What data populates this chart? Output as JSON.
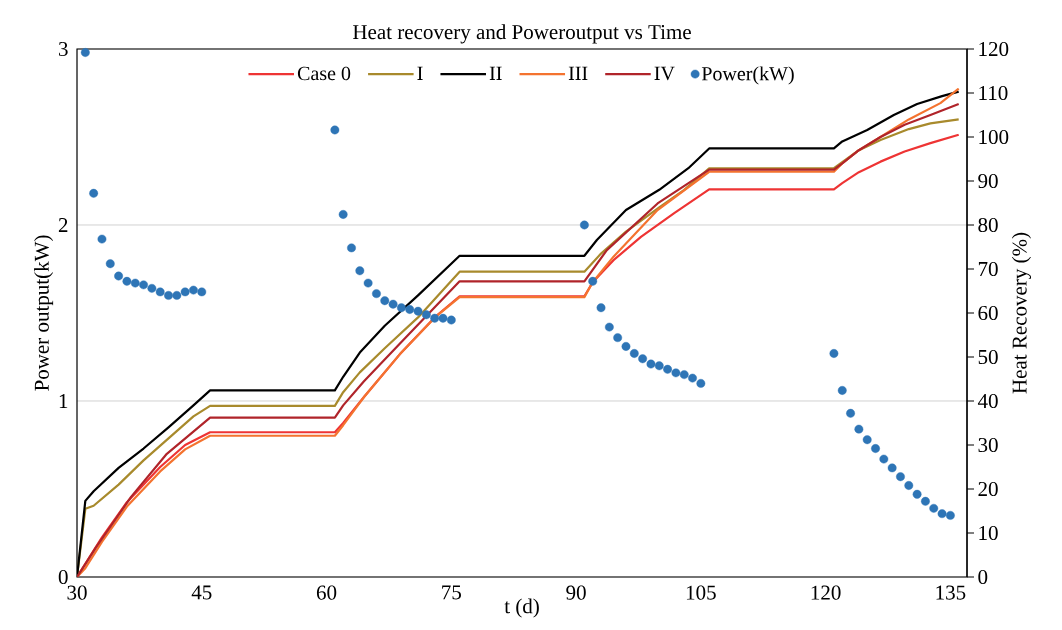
{
  "chart_data": {
    "type": "line",
    "title": "Heat recovery and Poweroutput vs Time",
    "xlabel": "t (d)",
    "ylabel": "Power output(kW)",
    "y2label": "Heat Recovery (%)",
    "xlim": [
      30,
      137
    ],
    "xticks": [
      30,
      45,
      60,
      75,
      90,
      105,
      120,
      135
    ],
    "ylim": [
      0,
      3
    ],
    "yticks": [
      0,
      1,
      2,
      3
    ],
    "y2lim": [
      0,
      120
    ],
    "y2ticks": [
      0,
      10,
      20,
      30,
      40,
      50,
      60,
      70,
      80,
      90,
      100,
      110,
      120
    ],
    "grid": "y",
    "legend": "top",
    "series": [
      {
        "name": "Case 0",
        "axis": "y2",
        "color": "#ee3434",
        "x": [
          30,
          31,
          33,
          36,
          40,
          43,
          46,
          61,
          62,
          64.5,
          68.8,
          73,
          76,
          91,
          92,
          94.5,
          97.8,
          101.8,
          106,
          121,
          122,
          124,
          126.6,
          129.5,
          132.6,
          136
        ],
        "values": [
          0,
          3,
          9,
          17,
          25,
          30,
          32.9,
          32.9,
          35,
          40.9,
          50.6,
          59,
          63.8,
          63.8,
          67,
          72,
          77.3,
          82.7,
          88.1,
          88.1,
          89.5,
          92,
          94.4,
          96.7,
          98.6,
          100.5
        ]
      },
      {
        "name": "I",
        "axis": "y2",
        "color": "#a88a2c",
        "x": [
          30,
          31,
          32,
          35,
          38,
          41,
          44,
          46,
          61,
          62,
          64,
          67,
          71,
          76,
          91,
          93,
          96,
          100,
          103,
          106,
          121,
          124,
          126.6,
          130,
          132.6,
          136
        ],
        "values": [
          0,
          15.5,
          16.2,
          21,
          26.5,
          31.5,
          36.5,
          38.9,
          38.9,
          42,
          46.5,
          52,
          59,
          69.4,
          69.4,
          73.5,
          78.5,
          84,
          88,
          92.9,
          92.9,
          97,
          99.3,
          101.8,
          103.1,
          104
        ]
      },
      {
        "name": "II",
        "axis": "y2",
        "color": "#000000",
        "x": [
          30,
          31,
          32,
          35,
          38,
          41,
          44,
          46,
          61,
          62,
          64,
          67,
          71,
          76,
          91,
          92.5,
          96,
          100,
          103.5,
          106,
          121,
          122,
          125,
          128.2,
          131,
          134,
          136
        ],
        "values": [
          0,
          17.3,
          19.5,
          24.8,
          29.2,
          34,
          39,
          42.4,
          42.4,
          45.5,
          51,
          57.1,
          64,
          73,
          73,
          76.6,
          83.4,
          88,
          92.9,
          97.4,
          97.4,
          99,
          101.6,
          105,
          107.5,
          109.3,
          110.3
        ]
      },
      {
        "name": "III",
        "axis": "y2",
        "color": "#f4732f",
        "x": [
          30,
          31,
          33,
          36,
          40,
          43,
          46,
          61,
          62,
          64.5,
          68.8,
          73.1,
          76,
          91,
          92,
          94.5,
          99.8,
          106,
          121,
          122,
          124,
          126.6,
          130,
          133.8,
          136
        ],
        "values": [
          0,
          2,
          8,
          16,
          24,
          29,
          32.1,
          32.1,
          34.5,
          40.9,
          50.6,
          59.1,
          63.6,
          63.6,
          67,
          72.8,
          83.4,
          92.1,
          92.1,
          94,
          97,
          100,
          104,
          107.7,
          111
        ]
      },
      {
        "name": "IV",
        "axis": "y2",
        "color": "#b0242a",
        "x": [
          30,
          32.3,
          36.5,
          40.8,
          46,
          61,
          62,
          64.5,
          68.8,
          76,
          91,
          93.7,
          99.8,
          106,
          121,
          122,
          124,
          126.6,
          129.5,
          132.6,
          136
        ],
        "values": [
          0,
          6.8,
          18.2,
          28,
          36.2,
          36.2,
          39,
          44.5,
          53,
          67.2,
          67.2,
          74.3,
          84.9,
          92.6,
          92.6,
          94,
          97,
          100,
          102.8,
          105,
          107.5
        ]
      },
      {
        "name": "Power(kW)",
        "type": "scatter",
        "marker": "circle",
        "color": "#2e75b6",
        "x": [
          31,
          32,
          33,
          34,
          35,
          36,
          37,
          38,
          39,
          40,
          41,
          42,
          43,
          44,
          45,
          61,
          62,
          63,
          64,
          65,
          66,
          67,
          68,
          69,
          70,
          71,
          72,
          73,
          74,
          75,
          91,
          92,
          93,
          94,
          95,
          96,
          97,
          98,
          99,
          100,
          101,
          102,
          103,
          104,
          105,
          121,
          122,
          123,
          124,
          125,
          126,
          127,
          128,
          129,
          130,
          131,
          132,
          133,
          134,
          135
        ],
        "values": [
          2.98,
          2.18,
          1.92,
          1.78,
          1.71,
          1.68,
          1.67,
          1.66,
          1.64,
          1.62,
          1.6,
          1.6,
          1.62,
          1.63,
          1.62,
          2.54,
          2.06,
          1.87,
          1.74,
          1.67,
          1.61,
          1.57,
          1.55,
          1.53,
          1.52,
          1.51,
          1.49,
          1.47,
          1.47,
          1.46,
          2.0,
          1.68,
          1.53,
          1.42,
          1.36,
          1.31,
          1.27,
          1.24,
          1.21,
          1.2,
          1.18,
          1.16,
          1.15,
          1.13,
          1.1,
          1.27,
          1.06,
          0.93,
          0.84,
          0.78,
          0.73,
          0.67,
          0.62,
          0.57,
          0.52,
          0.47,
          0.43,
          0.39,
          0.36,
          0.35
        ]
      }
    ]
  }
}
